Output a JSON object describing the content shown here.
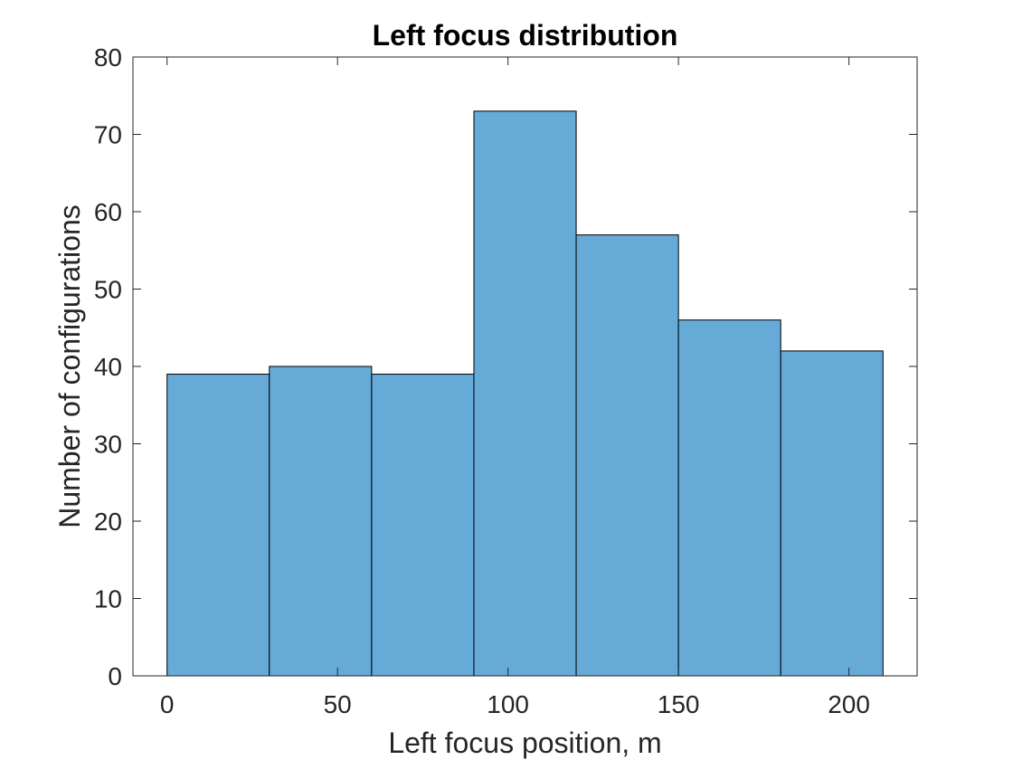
{
  "chart_data": {
    "type": "bar",
    "title": "Left focus distribution",
    "xlabel": "Left focus position, m",
    "ylabel": "Number of configurations",
    "bin_edges": [
      0,
      30,
      60,
      90,
      120,
      150,
      180,
      210
    ],
    "values": [
      39,
      40,
      39,
      73,
      57,
      46,
      42
    ],
    "xlim": [
      -10,
      220
    ],
    "ylim": [
      0,
      80
    ],
    "xticks": [
      0,
      50,
      100,
      150,
      200
    ],
    "yticks": [
      0,
      10,
      20,
      30,
      40,
      50,
      60,
      70,
      80
    ],
    "grid": false,
    "legend": "none",
    "bar_color": "#66aad7",
    "edge_color": "#000000"
  }
}
